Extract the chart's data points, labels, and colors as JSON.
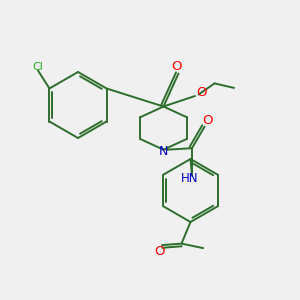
{
  "bg_color": "#f0f0f0",
  "bond_color": "#2d6e2d",
  "bond_width": 1.4,
  "atom_colors": {
    "O": "#ff0000",
    "N": "#0000cc",
    "Cl": "#22aa22",
    "C": "#1a1a1a",
    "H": "#555555"
  },
  "fig_size": [
    3.0,
    3.0
  ],
  "dpi": 100,
  "xlim": [
    0,
    10
  ],
  "ylim": [
    0,
    10
  ]
}
